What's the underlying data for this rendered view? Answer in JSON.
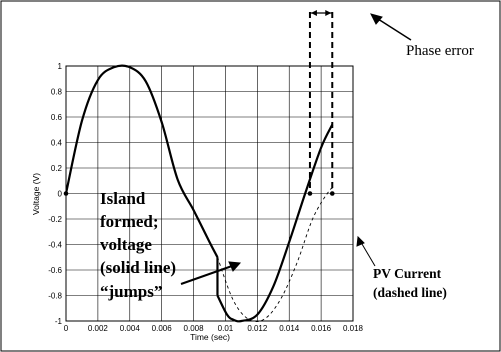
{
  "chart_data": {
    "type": "line",
    "xlabel": "Time (sec)",
    "ylabel": "Voltage (V)",
    "xlim": [
      0,
      0.018
    ],
    "ylim": [
      -1,
      1
    ],
    "x_ticks": [
      "0",
      "0.002",
      "0.004",
      "0.006",
      "0.008",
      "0.01",
      "0.012",
      "0.014",
      "0.016",
      "0.018"
    ],
    "y_ticks": [
      "1",
      "0.8",
      "0.6",
      "0.4",
      "0.2",
      "0",
      "-0.2",
      "-0.4",
      "-0.6",
      "-0.8",
      "-1"
    ],
    "grid": true,
    "series": [
      {
        "style": "solid",
        "x": [
          0,
          0.001,
          0.002,
          0.003,
          0.004,
          0.005,
          0.006,
          0.007,
          0.008,
          0.009,
          0.0095,
          0.0095,
          0.0101,
          0.0105,
          0.011,
          0.012,
          0.013,
          0.014,
          0.015,
          0.016,
          0.0167
        ],
        "y": [
          0,
          0.57,
          0.89,
          0.99,
          0.99,
          0.88,
          0.56,
          0.11,
          -0.13,
          -0.38,
          -0.5,
          -0.8,
          -0.95,
          -0.99,
          -1.0,
          -0.95,
          -0.73,
          -0.38,
          0.0,
          0.36,
          0.54
        ]
      },
      {
        "style": "dashed",
        "x": [
          0.0095,
          0.0105,
          0.0115,
          0.0125,
          0.0135,
          0.0145,
          0.0155,
          0.0165,
          0.0168
        ],
        "y": [
          -0.5,
          -0.84,
          -0.99,
          -0.98,
          -0.82,
          -0.54,
          -0.19,
          0.02,
          0.04
        ]
      }
    ],
    "markers": [
      {
        "x": 0,
        "y": 0
      },
      {
        "x": 0.0153,
        "y": 0
      },
      {
        "x": 0.0167,
        "y": 0
      }
    ],
    "phase_lines_x": [
      0.0153,
      0.0167
    ]
  },
  "annotations": {
    "island_lines": [
      "Island",
      "formed;",
      "voltage",
      "(solid line)",
      "“jumps”"
    ],
    "pv_lines": [
      "PV Current",
      "(dashed line)"
    ],
    "phase_error": "Phase error"
  }
}
